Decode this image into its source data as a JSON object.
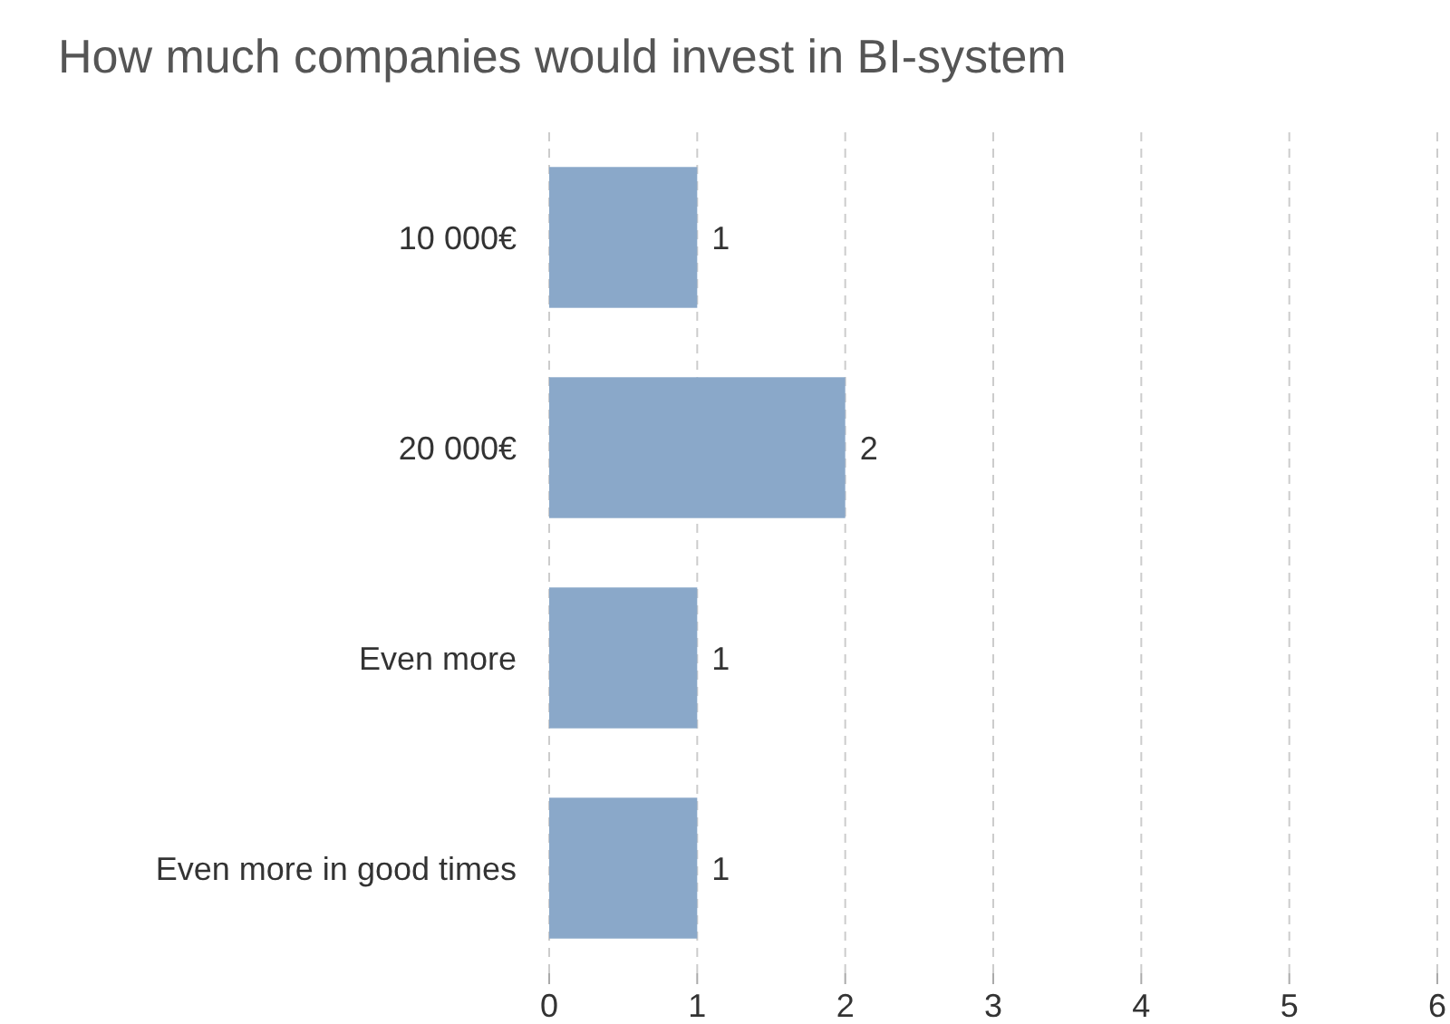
{
  "chart_data": {
    "type": "bar",
    "orientation": "horizontal",
    "title": "How much companies would invest in BI-system",
    "categories": [
      "10 000€",
      "20 000€",
      "Even more",
      "Even more in good times"
    ],
    "values": [
      1,
      2,
      1,
      1
    ],
    "color": "#8aa8c9",
    "xlim": [
      0,
      6
    ],
    "xticks": [
      0,
      1,
      2,
      3,
      4,
      5,
      6
    ],
    "grid": "x",
    "data_labels": true
  }
}
